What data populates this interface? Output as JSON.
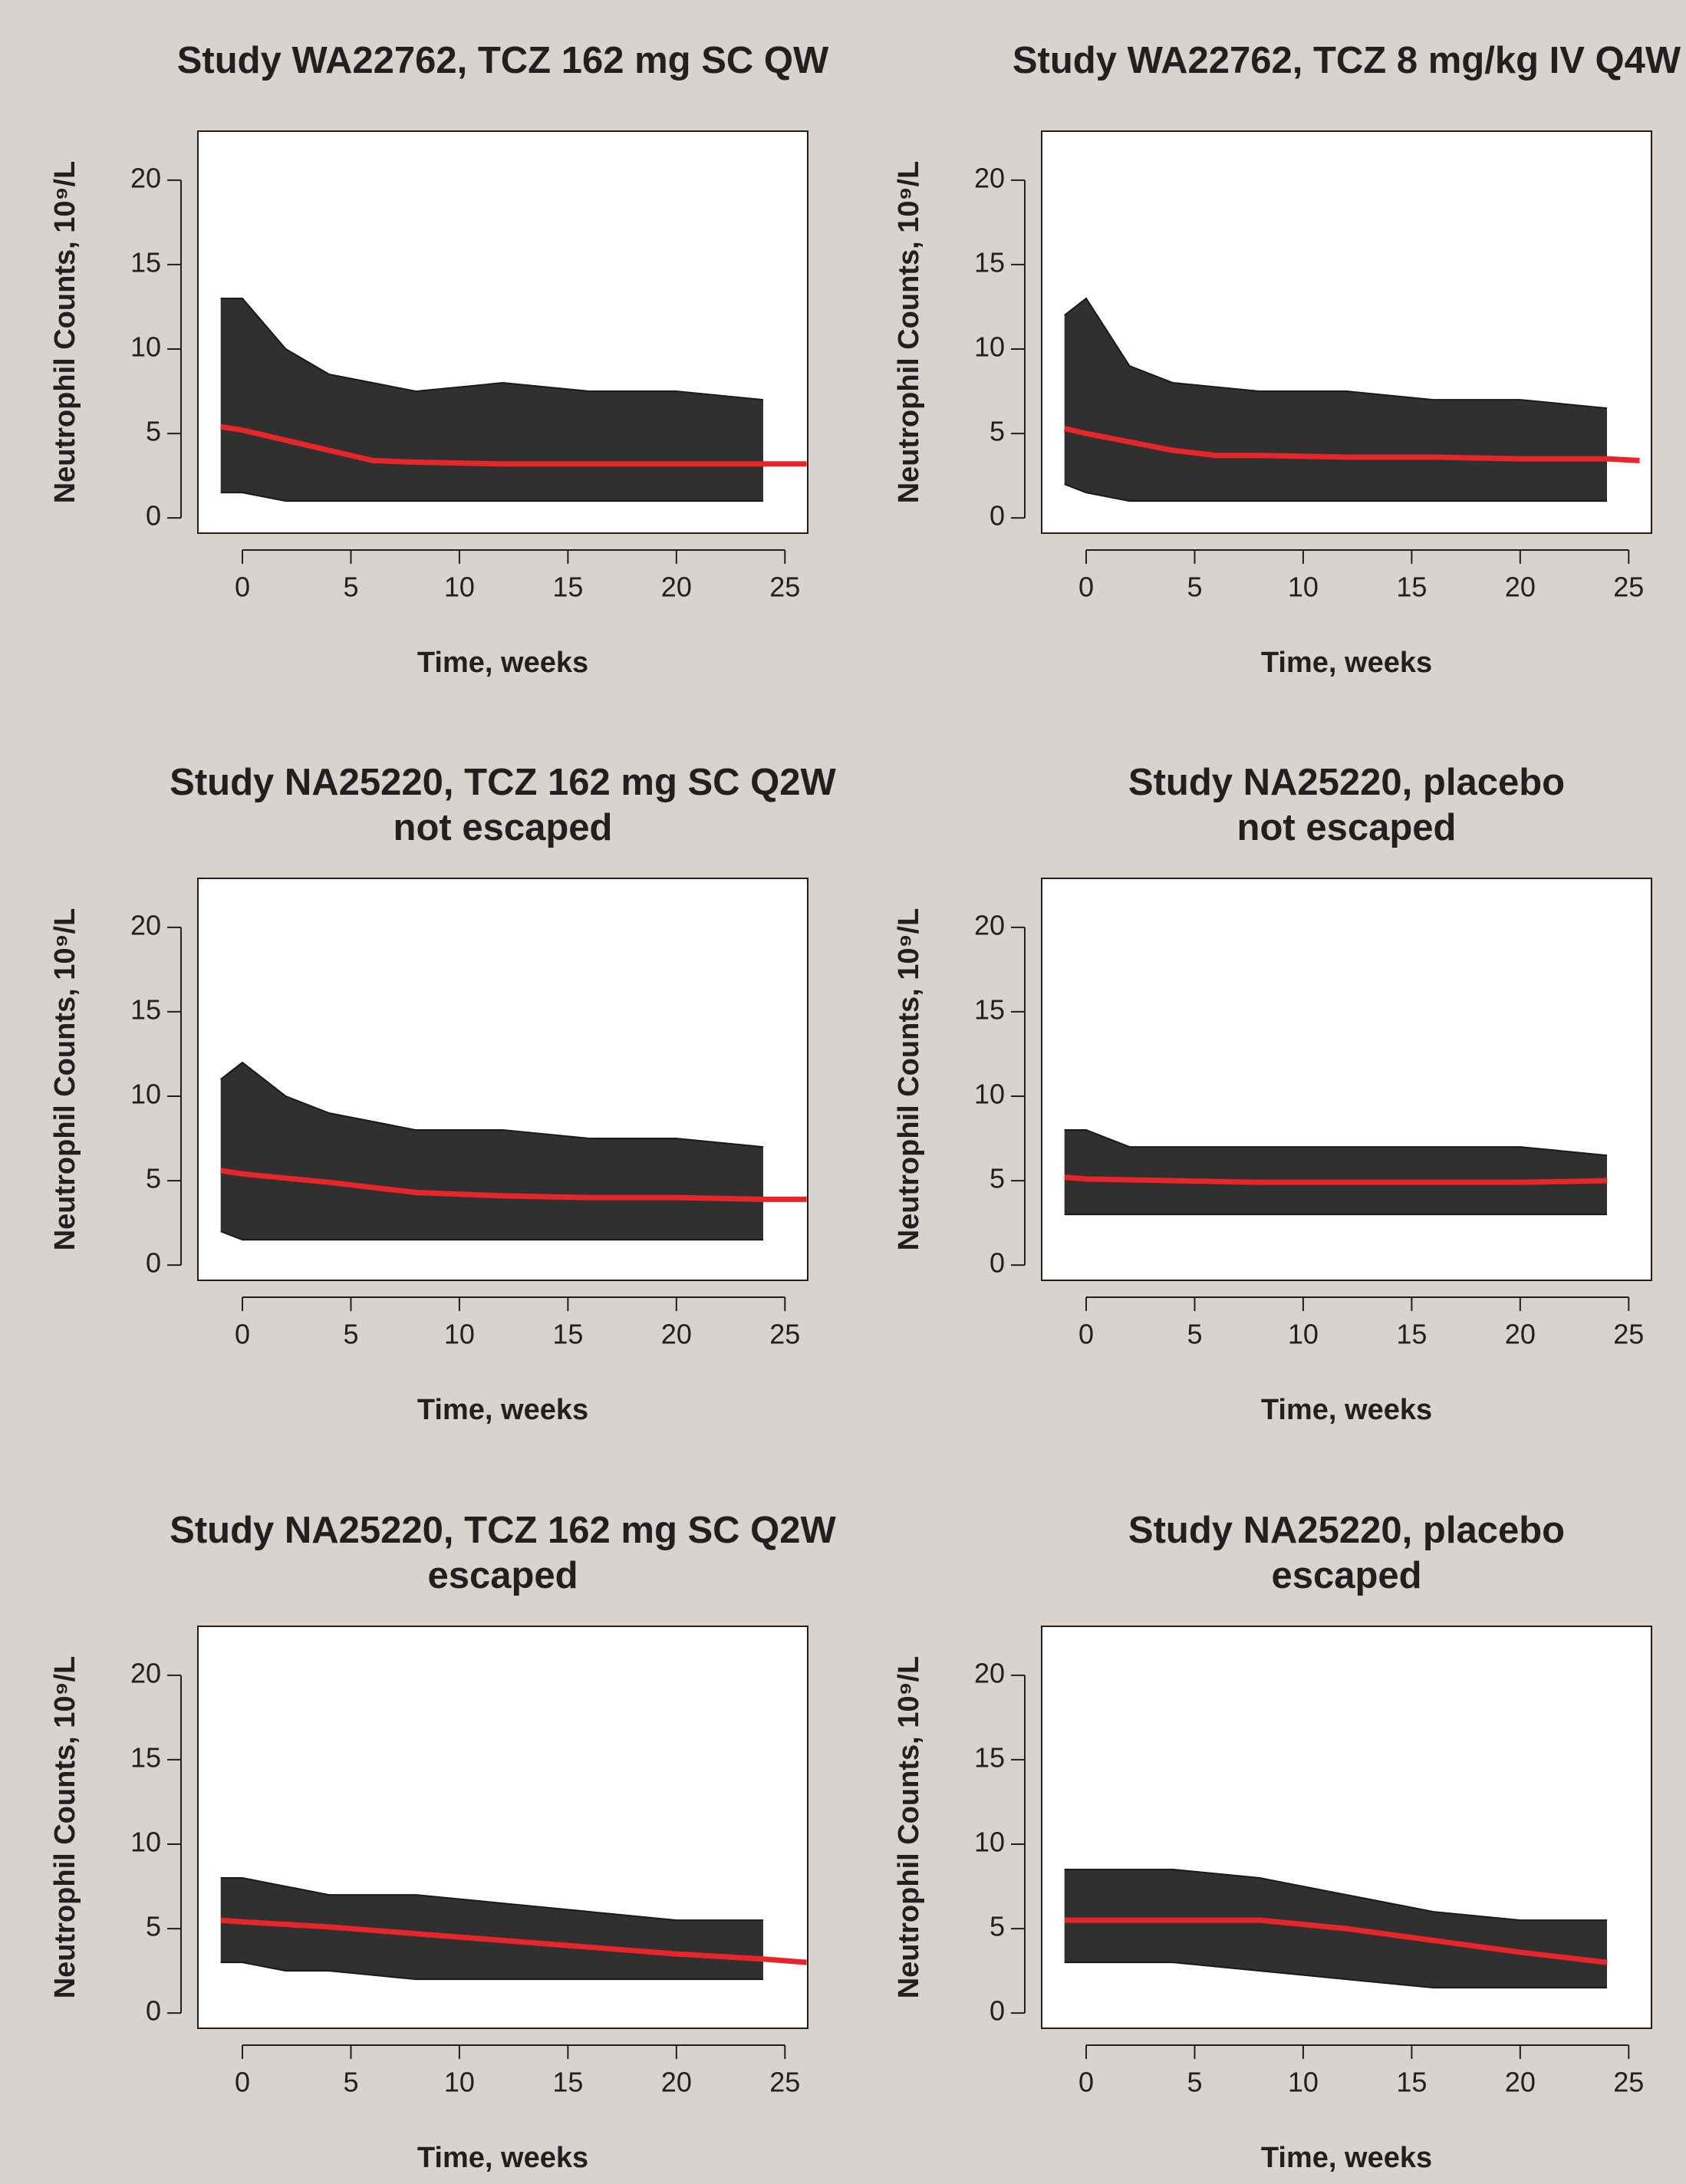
{
  "chart_data": [
    {
      "type": "line",
      "title": "Study WA22762, TCZ 162 mg SC QW",
      "xlabel": "Time, weeks",
      "ylabel": "Neutrophil Counts, 10⁹/L",
      "xlim": [
        -2.05,
        26.05
      ],
      "ylim": [
        -0.9,
        22.9
      ],
      "xticks": [
        0,
        5,
        10,
        15,
        20,
        25
      ],
      "yticks": [
        0,
        5,
        10,
        15,
        20
      ],
      "series": [
        {
          "color": "#1a1a1a",
          "x": [
            -1,
            0,
            2,
            4,
            8,
            12,
            16,
            20,
            24
          ],
          "values": [
            13,
            13,
            10,
            8.5,
            7.5,
            8,
            7.5,
            7.5,
            7
          ]
        },
        {
          "color": "#1a1a1a",
          "x": [
            -1,
            0,
            2,
            4,
            8,
            12,
            16,
            20,
            24
          ],
          "values": [
            1.5,
            1.5,
            1,
            1,
            1,
            1,
            1,
            1,
            1
          ]
        },
        {
          "color": "#e8262a",
          "x": [
            -1,
            0,
            2,
            4,
            6,
            8,
            12,
            16,
            20,
            24,
            26
          ],
          "values": [
            5.4,
            5.2,
            4.6,
            4.0,
            3.4,
            3.3,
            3.2,
            3.2,
            3.2,
            3.2,
            3.2
          ]
        }
      ]
    },
    {
      "type": "line",
      "title": "Study WA22762, TCZ 8 mg/kg IV Q4W",
      "xlabel": "Time, weeks",
      "ylabel": "Neutrophil Counts, 10⁹/L",
      "xlim": [
        -2.05,
        26.05
      ],
      "ylim": [
        -0.9,
        22.9
      ],
      "xticks": [
        0,
        5,
        10,
        15,
        20,
        25
      ],
      "yticks": [
        0,
        5,
        10,
        15,
        20
      ],
      "series": [
        {
          "color": "#1a1a1a",
          "x": [
            -1,
            0,
            2,
            4,
            8,
            12,
            16,
            20,
            24
          ],
          "values": [
            12,
            13,
            9,
            8,
            7.5,
            7.5,
            7,
            7,
            6.5
          ]
        },
        {
          "color": "#1a1a1a",
          "x": [
            -1,
            0,
            2,
            4,
            8,
            12,
            16,
            20,
            24
          ],
          "values": [
            2,
            1.5,
            1,
            1,
            1,
            1,
            1,
            1,
            1
          ]
        },
        {
          "color": "#e8262a",
          "x": [
            -1,
            0,
            2,
            4,
            6,
            8,
            12,
            16,
            20,
            24,
            25.5
          ],
          "values": [
            5.3,
            5.0,
            4.5,
            4.0,
            3.7,
            3.7,
            3.6,
            3.6,
            3.5,
            3.5,
            3.4
          ]
        }
      ]
    },
    {
      "type": "line",
      "title": "Study NA25220, TCZ 162 mg SC Q2W",
      "subtitle": "not escaped",
      "xlabel": "Time, weeks",
      "ylabel": "Neutrophil Counts, 10⁹/L",
      "xlim": [
        -2.05,
        26.05
      ],
      "ylim": [
        -0.9,
        22.9
      ],
      "xticks": [
        0,
        5,
        10,
        15,
        20,
        25
      ],
      "yticks": [
        0,
        5,
        10,
        15,
        20
      ],
      "series": [
        {
          "color": "#1a1a1a",
          "x": [
            -1,
            0,
            2,
            4,
            8,
            12,
            16,
            20,
            24
          ],
          "values": [
            11,
            12,
            10,
            9,
            8,
            8,
            7.5,
            7.5,
            7
          ]
        },
        {
          "color": "#1a1a1a",
          "x": [
            -1,
            0,
            2,
            4,
            8,
            12,
            16,
            20,
            24
          ],
          "values": [
            2,
            1.5,
            1.5,
            1.5,
            1.5,
            1.5,
            1.5,
            1.5,
            1.5
          ]
        },
        {
          "color": "#e8262a",
          "x": [
            -1,
            0,
            4,
            8,
            12,
            16,
            20,
            24,
            26
          ],
          "values": [
            5.6,
            5.4,
            4.9,
            4.3,
            4.1,
            4.0,
            4.0,
            3.9,
            3.9
          ]
        }
      ]
    },
    {
      "type": "line",
      "title": "Study NA25220, placebo",
      "subtitle": "not escaped",
      "xlabel": "Time, weeks",
      "ylabel": "Neutrophil Counts, 10⁹/L",
      "xlim": [
        -2.05,
        26.05
      ],
      "ylim": [
        -0.9,
        22.9
      ],
      "xticks": [
        0,
        5,
        10,
        15,
        20,
        25
      ],
      "yticks": [
        0,
        5,
        10,
        15,
        20
      ],
      "series": [
        {
          "color": "#1a1a1a",
          "x": [
            -1,
            0,
            2,
            4,
            8,
            12,
            16,
            20,
            24
          ],
          "values": [
            8,
            8,
            7,
            7,
            7,
            7,
            7,
            7,
            6.5
          ]
        },
        {
          "color": "#1a1a1a",
          "x": [
            -1,
            0,
            2,
            4,
            8,
            12,
            16,
            20,
            24
          ],
          "values": [
            3,
            3,
            3,
            3,
            3,
            3,
            3,
            3,
            3
          ]
        },
        {
          "color": "#e8262a",
          "x": [
            -1,
            0,
            4,
            8,
            12,
            16,
            20,
            24
          ],
          "values": [
            5.2,
            5.1,
            5.0,
            4.9,
            4.9,
            4.9,
            4.9,
            5.0
          ]
        }
      ]
    },
    {
      "type": "line",
      "title": "Study NA25220, TCZ 162 mg SC Q2W",
      "subtitle": "escaped",
      "xlabel": "Time, weeks",
      "ylabel": "Neutrophil Counts, 10⁹/L",
      "xlim": [
        -2.05,
        26.05
      ],
      "ylim": [
        -0.9,
        22.9
      ],
      "xticks": [
        0,
        5,
        10,
        15,
        20,
        25
      ],
      "yticks": [
        0,
        5,
        10,
        15,
        20
      ],
      "series": [
        {
          "color": "#1a1a1a",
          "x": [
            -1,
            0,
            2,
            4,
            8,
            12,
            16,
            20,
            24
          ],
          "values": [
            8,
            8,
            7.5,
            7,
            7,
            6.5,
            6,
            5.5,
            5.5
          ]
        },
        {
          "color": "#1a1a1a",
          "x": [
            -1,
            0,
            2,
            4,
            8,
            12,
            16,
            20,
            24
          ],
          "values": [
            3,
            3,
            2.5,
            2.5,
            2,
            2,
            2,
            2,
            2
          ]
        },
        {
          "color": "#e8262a",
          "x": [
            -1,
            0,
            4,
            8,
            12,
            16,
            20,
            24,
            26
          ],
          "values": [
            5.5,
            5.4,
            5.1,
            4.7,
            4.3,
            3.9,
            3.5,
            3.2,
            3.0
          ]
        }
      ]
    },
    {
      "type": "line",
      "title": "Study NA25220, placebo",
      "subtitle": "escaped",
      "xlabel": "Time, weeks",
      "ylabel": "Neutrophil Counts, 10⁹/L",
      "xlim": [
        -2.05,
        26.05
      ],
      "ylim": [
        -0.9,
        22.9
      ],
      "xticks": [
        0,
        5,
        10,
        15,
        20,
        25
      ],
      "yticks": [
        0,
        5,
        10,
        15,
        20
      ],
      "series": [
        {
          "color": "#1a1a1a",
          "x": [
            -1,
            0,
            2,
            4,
            8,
            12,
            16,
            20,
            24
          ],
          "values": [
            8.5,
            8.5,
            8.5,
            8.5,
            8,
            7,
            6,
            5.5,
            5.5
          ]
        },
        {
          "color": "#1a1a1a",
          "x": [
            -1,
            0,
            2,
            4,
            8,
            12,
            16,
            20,
            24
          ],
          "values": [
            3,
            3,
            3,
            3,
            2.5,
            2,
            1.5,
            1.5,
            1.5
          ]
        },
        {
          "color": "#e8262a",
          "x": [
            -1,
            0,
            4,
            8,
            12,
            16,
            20,
            24
          ],
          "values": [
            5.5,
            5.5,
            5.5,
            5.5,
            5.0,
            4.3,
            3.6,
            3.0
          ]
        }
      ]
    }
  ]
}
